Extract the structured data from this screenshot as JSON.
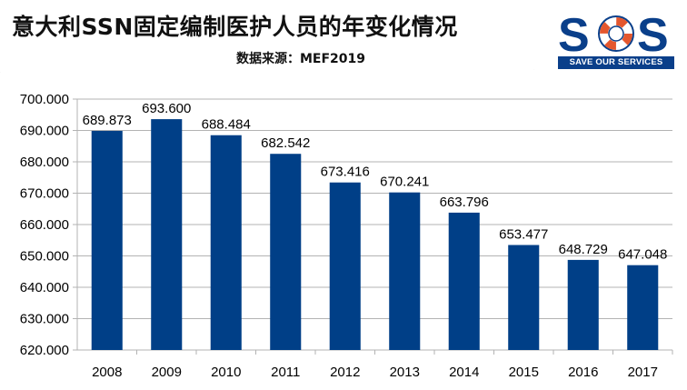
{
  "header": {
    "title": "意大利SSN固定编制医护人员的年变化情况",
    "source": "数据来源：MEF2019"
  },
  "logo": {
    "letters": [
      "S",
      "O",
      "S"
    ],
    "tagline": "SAVE OUR SERVICES",
    "colors": {
      "primary": "#0a3f8a",
      "accent": "#e4572e"
    },
    "icon": "lifebuoy-icon"
  },
  "chart_data": {
    "type": "bar",
    "categories": [
      "2008",
      "2009",
      "2010",
      "2011",
      "2012",
      "2013",
      "2014",
      "2015",
      "2016",
      "2017"
    ],
    "values": [
      689873,
      693600,
      688484,
      682542,
      673416,
      670241,
      663796,
      653477,
      648729,
      647048
    ],
    "value_labels": [
      "689.873",
      "693.600",
      "688.484",
      "682.542",
      "673.416",
      "670.241",
      "663.796",
      "653.477",
      "648.729",
      "647.048"
    ],
    "y_ticks": [
      "620.000",
      "630.000",
      "640.000",
      "650.000",
      "660.000",
      "670.000",
      "680.000",
      "690.000",
      "700.000"
    ],
    "ylim": [
      620000,
      700000
    ],
    "ytick_step": 10000,
    "grid": true,
    "legend": "none",
    "bar_color": "#003f87"
  }
}
